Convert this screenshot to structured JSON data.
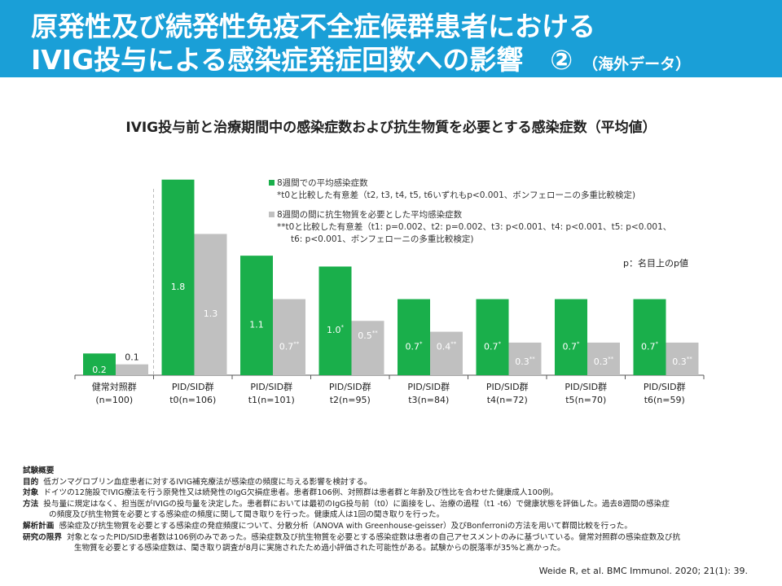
{
  "header": {
    "title_line1": "原発性及び続発性免疫不全症候群患者における",
    "title_line2": "IVIG投与による感染症発症回数への影響　②",
    "title_note": "（海外データ）",
    "bg_color": "#1a9fd7"
  },
  "chart_data": {
    "type": "bar",
    "title": "IVIG投与前と治療期間中の感染症数および抗生物質を必要とする感染症数（平均値）",
    "categories": [
      {
        "line1": "健常対照群",
        "line2": "(n=100)"
      },
      {
        "line1": "PID/SID群",
        "line2": "t0(n=106)"
      },
      {
        "line1": "PID/SID群",
        "line2": "t1(n=101)"
      },
      {
        "line1": "PID/SID群",
        "line2": "t2(n=95)"
      },
      {
        "line1": "PID/SID群",
        "line2": "t3(n=84)"
      },
      {
        "line1": "PID/SID群",
        "line2": "t4(n=72)"
      },
      {
        "line1": "PID/SID群",
        "line2": "t5(n=70)"
      },
      {
        "line1": "PID/SID群",
        "line2": "t6(n=59)"
      }
    ],
    "series": [
      {
        "name": "8週間での平均感染症数",
        "color": "#1aaf4b",
        "values": [
          0.2,
          1.8,
          1.1,
          1.0,
          0.7,
          0.7,
          0.7,
          0.7
        ],
        "labels": [
          "0.2",
          "1.8",
          "1.1",
          "1.0",
          "0.7",
          "0.7",
          "0.7",
          "0.7"
        ],
        "marks": [
          "",
          "",
          "",
          "*",
          "*",
          "*",
          "*",
          "*"
        ]
      },
      {
        "name": "8週間の間に抗生物質を必要とした平均感染症数",
        "color": "#c0c0c0",
        "values": [
          0.1,
          1.3,
          0.7,
          0.5,
          0.4,
          0.3,
          0.3,
          0.3
        ],
        "labels": [
          "0.1",
          "1.3",
          "0.7",
          "0.5",
          "0.4",
          "0.3",
          "0.3",
          "0.3"
        ],
        "marks": [
          "",
          "",
          "**",
          "**",
          "**",
          "**",
          "**",
          "**"
        ]
      }
    ],
    "ylim": [
      0,
      2.0
    ],
    "legend": {
      "green_title": "8週間での平均感染症数",
      "green_note": "*t0と比較した有意差（t2, t3, t4, t5, t6いずれもp<0.001、ボンフェローニの多重比較検定)",
      "gray_title": "8週間の間に抗生物質を必要とした平均感染症数",
      "gray_note1": "**t0と比較した有意差（t1: p=0.002、t2: p=0.002、t3: p<0.001、t4: p<0.001、t5: p<0.001、",
      "gray_note2": "t6: p<0.001、ボンフェローニの多重比較検定)"
    },
    "p_note": "p：名目上のp値"
  },
  "summary": {
    "heading": "試験概要",
    "purpose_label": "目的",
    "purpose": "低ガンマグロブリン血症患者に対するIVIG補充療法が感染症の頻度に与える影響を検討する。",
    "subjects_label": "対象",
    "subjects": "ドイツの12施設でIVIG療法を行う原発性又は続発性のIgG欠損症患者。患者群106例、対照群は患者群と年齢及び性比を合わせた健康成人100例。",
    "method_label": "方法",
    "method_1": "投与量に規定はなく、担当医がIVIGの投与量を決定した。患者群においては最初のIgG投与前（t0）に面接をし、治療の過程（t1 -t6）で健康状態を評価した。過去8週間の感染症",
    "method_2": "の頻度及び抗生物質を必要とする感染症の頻度に関して聞き取りを行った。健康成人は1回の聞き取りを行った。",
    "analysis_label": "解析計画",
    "analysis": "感染症及び抗生物質を必要とする感染症の発症頻度について、分散分析（ANOVA with Greenhouse-geisser）及びBonferroniの方法を用いて群間比較を行った。",
    "limit_label": "研究の限界",
    "limit_1": "対象となったPID/SID患者数は106例のみであった。感染症数及び抗生物質を必要とする感染症数は患者の自己アセスメントのみに基づいている。健常対照群の感染症数及び抗",
    "limit_2": "生物質を必要とする感染症数は、聞き取り調査が8月に実施されたため過小評価された可能性がある。試験からの脱落率が35%と高かった。"
  },
  "reference": "Weide R, et al. BMC Immunol. 2020; 21(1): 39."
}
